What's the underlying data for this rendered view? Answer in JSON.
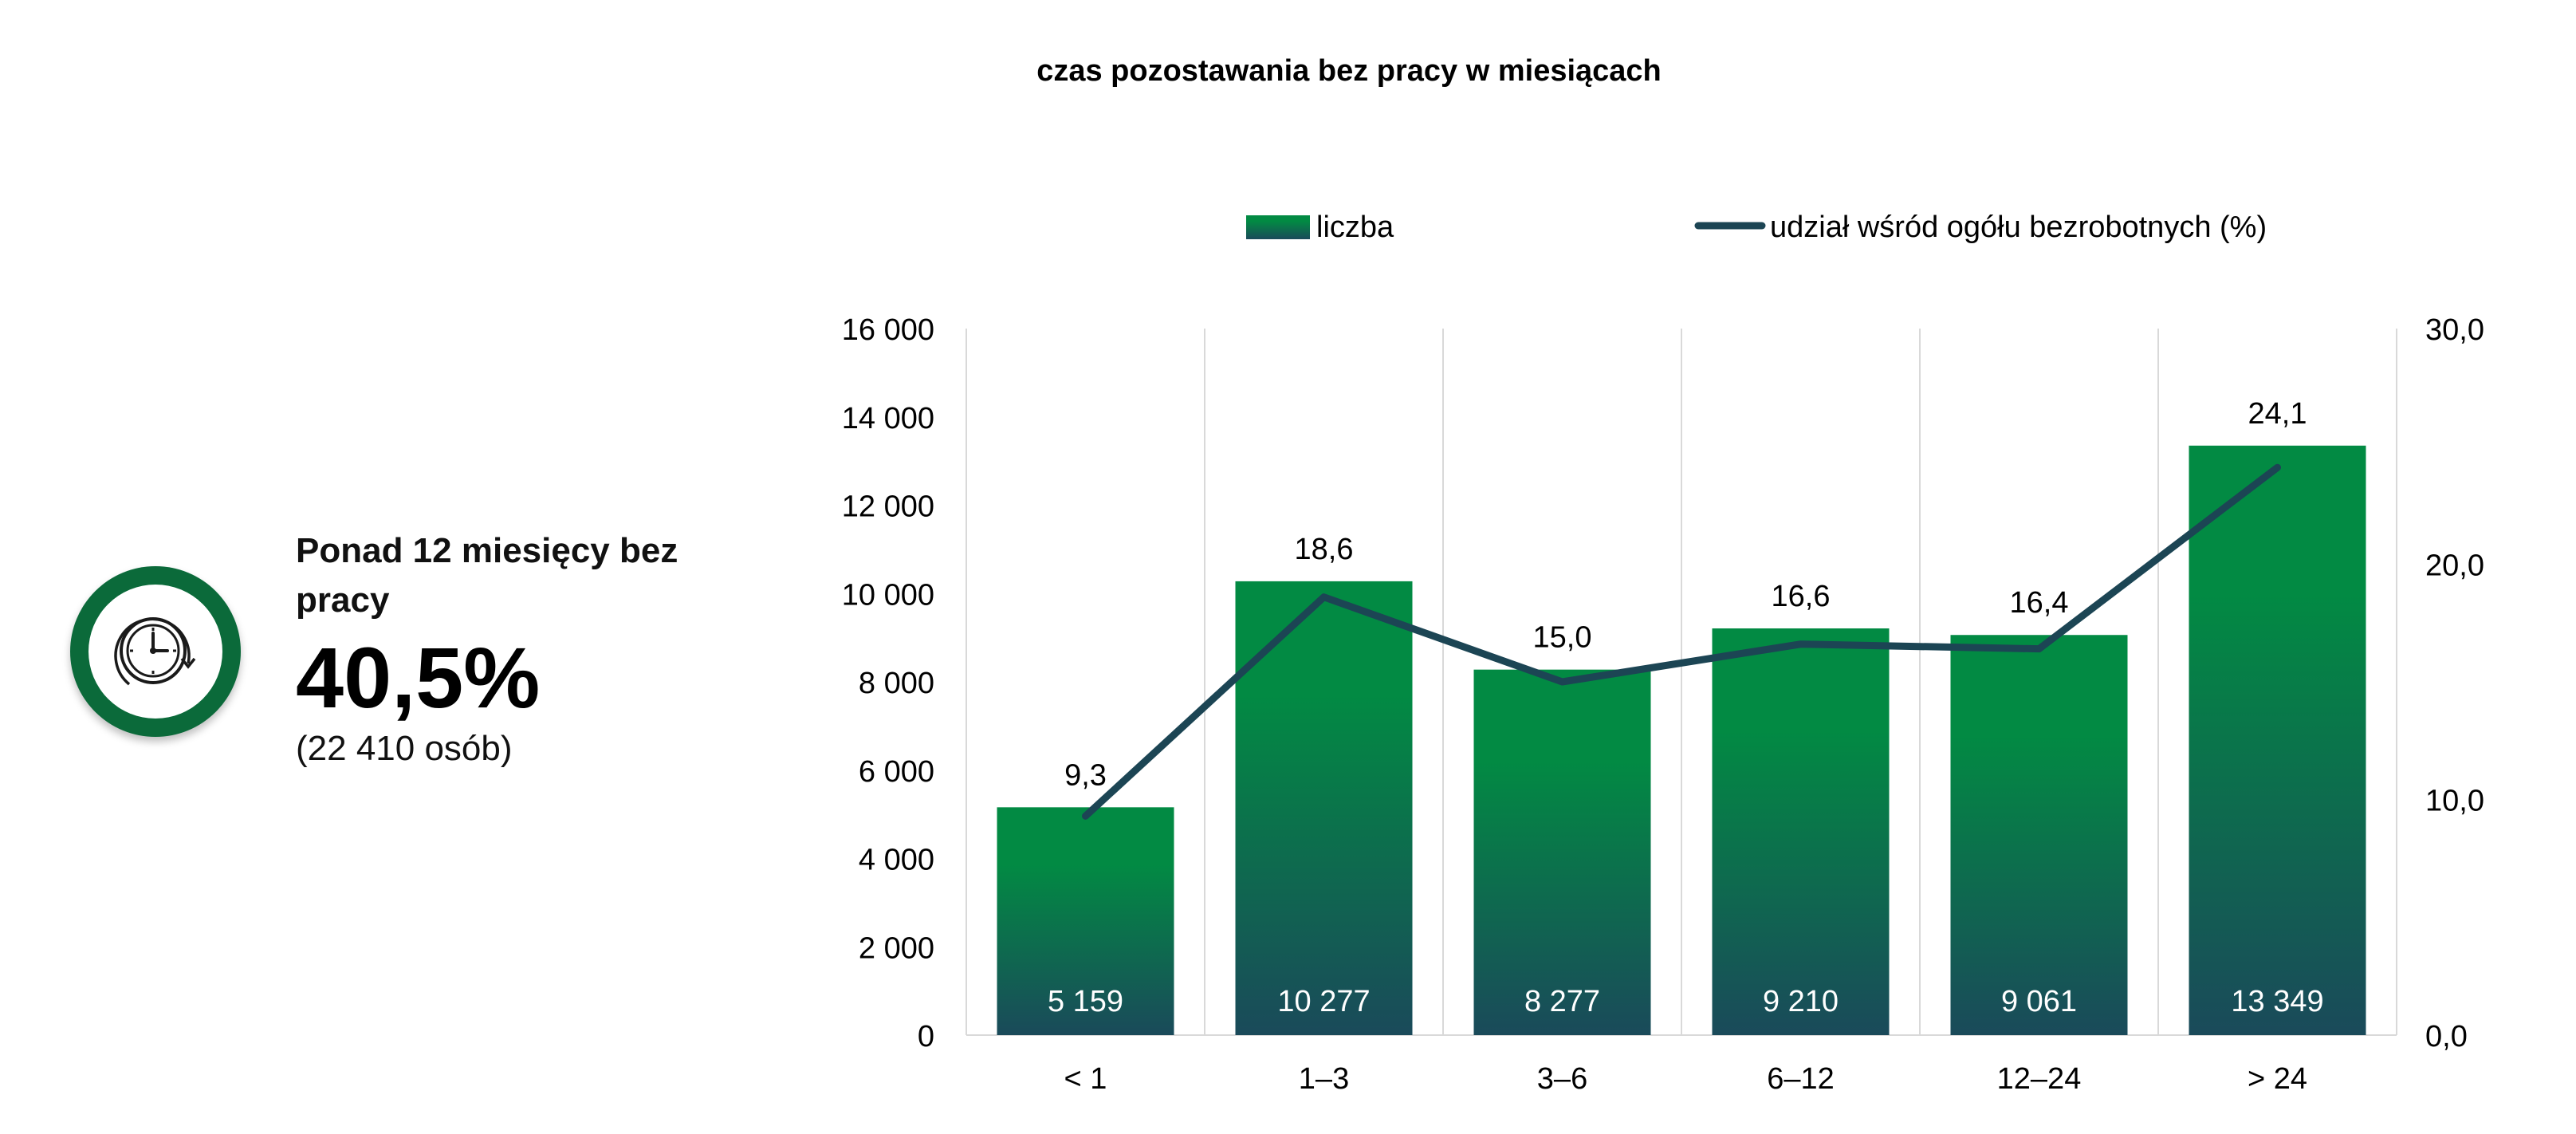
{
  "summary": {
    "label": "Ponad 12 miesięcy bez pracy",
    "value": "40,5%",
    "note": "(22 410 osób)",
    "icon": "clock-icon",
    "ring_color": "#0b6a3a"
  },
  "chart_data": {
    "type": "bar",
    "title": "czas pozostawania bez pracy w miesiącach",
    "categories": [
      "< 1",
      "1–3",
      "3–6",
      "6–12",
      "12–24",
      "> 24"
    ],
    "series": [
      {
        "name": "liczba",
        "type": "bar",
        "axis": "left",
        "values": [
          5159,
          10277,
          8277,
          9210,
          9061,
          13349
        ],
        "labels": [
          "5 159",
          "10 277",
          "8 277",
          "9 210",
          "9 061",
          "13 349"
        ]
      },
      {
        "name": "udział wśród ogółu bezrobotnych (%)",
        "type": "line",
        "axis": "right",
        "values": [
          9.3,
          18.6,
          15.0,
          16.6,
          16.4,
          24.1
        ],
        "labels": [
          "9,3",
          "18,6",
          "15,0",
          "16,6",
          "16,4",
          "24,1"
        ]
      }
    ],
    "y_left": {
      "min": 0,
      "max": 16000,
      "ticks": [
        "0",
        "2 000",
        "4 000",
        "6 000",
        "8 000",
        "10 000",
        "12 000",
        "14 000",
        "16 000"
      ]
    },
    "y_right": {
      "min": 0,
      "max": 30,
      "ticks": [
        "0,0",
        "10,0",
        "20,0",
        "30,0"
      ]
    },
    "grid": "vertical",
    "legend_position": "top",
    "colors": {
      "bar_top": "#028a43",
      "bar_bottom": "#1a4a5a",
      "line": "#1c4554",
      "grid": "#d9d9d9"
    }
  }
}
